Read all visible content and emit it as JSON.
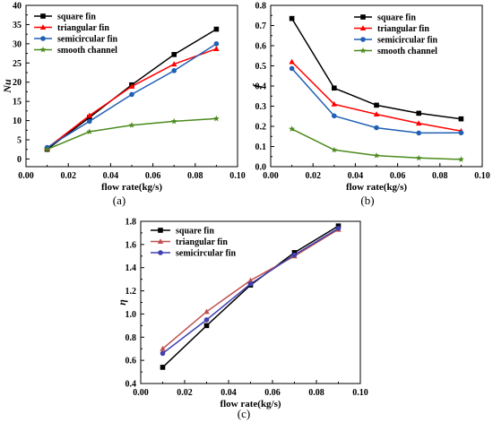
{
  "chart_data": [
    {
      "panel_label": "(a)",
      "type": "line",
      "xlabel": "flow rate(kg/s)",
      "ylabel": "Nu",
      "xlim": [
        0.0,
        0.1
      ],
      "ylim": [
        -2,
        40
      ],
      "xticks": [
        0.0,
        0.02,
        0.04,
        0.06,
        0.08,
        0.1
      ],
      "xtick_labels": [
        "0.00",
        "0.02",
        "0.04",
        "0.06",
        "0.08",
        "0.10"
      ],
      "yticks": [
        0,
        5,
        10,
        15,
        20,
        25,
        30,
        35,
        40
      ],
      "ytick_labels": [
        "0",
        "5",
        "10",
        "15",
        "20",
        "25",
        "30",
        "35",
        "40"
      ],
      "x": [
        0.01,
        0.03,
        0.05,
        0.07,
        0.09
      ],
      "legend_position": "top-left",
      "series": [
        {
          "name": "square fin",
          "color": "#000000",
          "marker": "square",
          "values": [
            2.5,
            10.8,
            19.3,
            27.2,
            33.8
          ]
        },
        {
          "name": "triangular fin",
          "color": "#ff0000",
          "marker": "triangle",
          "values": [
            2.8,
            11.3,
            18.9,
            24.7,
            28.7
          ]
        },
        {
          "name": "semicircular fin",
          "color": "#1f5fb4",
          "marker": "circle",
          "values": [
            3.0,
            9.8,
            16.8,
            23.0,
            30.0
          ]
        },
        {
          "name": "smooth channel",
          "color": "#4a8a1c",
          "marker": "star",
          "values": [
            2.5,
            7.1,
            8.8,
            9.8,
            10.5
          ]
        }
      ]
    },
    {
      "panel_label": "(b)",
      "type": "line",
      "xlabel": "flow rate(kg/s)",
      "ylabel": "f",
      "xlim": [
        0.0,
        0.1
      ],
      "ylim": [
        0.0,
        0.8
      ],
      "xticks": [
        0.0,
        0.02,
        0.04,
        0.06,
        0.08,
        0.1
      ],
      "xtick_labels": [
        "0.00",
        "0.02",
        "0.04",
        "0.06",
        "0.08",
        "0.10"
      ],
      "yticks": [
        0.0,
        0.1,
        0.2,
        0.3,
        0.4,
        0.5,
        0.6,
        0.7,
        0.8
      ],
      "ytick_labels": [
        "0.0",
        "0.1",
        "0.2",
        "0.3",
        "0.4",
        "0.5",
        "0.6",
        "0.7",
        "0.8"
      ],
      "x": [
        0.01,
        0.03,
        0.05,
        0.07,
        0.09
      ],
      "legend_position": "top-right",
      "series": [
        {
          "name": "square fin",
          "color": "#000000",
          "marker": "square",
          "values": [
            0.735,
            0.39,
            0.305,
            0.265,
            0.237
          ]
        },
        {
          "name": "triangular fin",
          "color": "#ff0000",
          "marker": "triangle",
          "values": [
            0.52,
            0.31,
            0.26,
            0.215,
            0.177
          ]
        },
        {
          "name": "semicircular fin",
          "color": "#1f5fb4",
          "marker": "circle",
          "values": [
            0.487,
            0.252,
            0.193,
            0.167,
            0.168
          ]
        },
        {
          "name": "smooth channel",
          "color": "#4a8a1c",
          "marker": "star",
          "values": [
            0.187,
            0.083,
            0.055,
            0.043,
            0.036
          ]
        }
      ]
    },
    {
      "panel_label": "(c)",
      "type": "line",
      "xlabel": "flow rate(kg/s)",
      "ylabel": "η",
      "xlim": [
        0.0,
        0.1
      ],
      "ylim": [
        0.4,
        1.8
      ],
      "xticks": [
        0.0,
        0.02,
        0.04,
        0.06,
        0.08,
        0.1
      ],
      "xtick_labels": [
        "0.00",
        "0.02",
        "0.04",
        "0.06",
        "0.08",
        "0.10"
      ],
      "yticks": [
        0.4,
        0.6,
        0.8,
        1.0,
        1.2,
        1.4,
        1.6,
        1.8
      ],
      "ytick_labels": [
        "0.4",
        "0.6",
        "0.8",
        "1.0",
        "1.2",
        "1.4",
        "1.6",
        "1.8"
      ],
      "x": [
        0.01,
        0.03,
        0.05,
        0.07,
        0.09
      ],
      "legend_position": "top-left",
      "series": [
        {
          "name": "square fin",
          "color": "#000000",
          "marker": "square",
          "values": [
            0.54,
            0.9,
            1.25,
            1.53,
            1.76
          ]
        },
        {
          "name": "triangular fin",
          "color": "#c0504d",
          "marker": "triangle",
          "values": [
            0.7,
            1.02,
            1.29,
            1.5,
            1.73
          ]
        },
        {
          "name": "semicircular fin",
          "color": "#3f3faf",
          "marker": "circle",
          "values": [
            0.66,
            0.95,
            1.26,
            1.51,
            1.74
          ]
        }
      ]
    }
  ]
}
